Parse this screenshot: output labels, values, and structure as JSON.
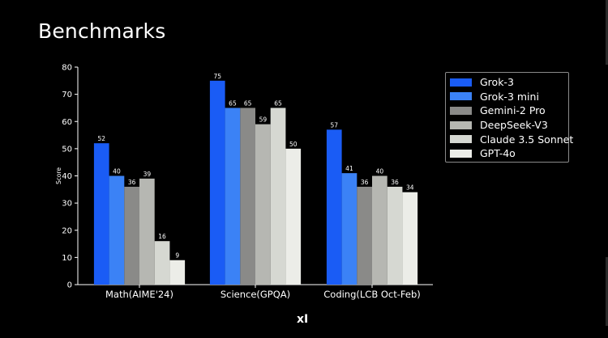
{
  "slide": {
    "title": "Benchmarks",
    "logo": "xI"
  },
  "colors": {
    "background": "#000000",
    "axis": "#ffffff"
  },
  "chart_data": {
    "type": "bar",
    "title": "",
    "xlabel": "",
    "ylabel": "Score",
    "ylim": [
      0,
      80
    ],
    "yticks": [
      0,
      10,
      20,
      30,
      40,
      50,
      60,
      70,
      80
    ],
    "grid": false,
    "legend_position": "top-right",
    "categories": [
      "Math(AIME'24)",
      "Science(GPQA)",
      "Coding(LCB Oct-Feb)"
    ],
    "series": [
      {
        "name": "Grok-3",
        "color": "#1a5cf5",
        "values": [
          52,
          75,
          57
        ]
      },
      {
        "name": "Grok-3 mini",
        "color": "#3b82f6",
        "values": [
          40,
          65,
          41
        ]
      },
      {
        "name": "Gemini-2 Pro",
        "color": "#8a8a88",
        "values": [
          36,
          65,
          36
        ]
      },
      {
        "name": "DeepSeek-V3",
        "color": "#b6b7b2",
        "values": [
          39,
          59,
          40
        ]
      },
      {
        "name": "Claude 3.5 Sonnet",
        "color": "#d6d8d2",
        "values": [
          16,
          65,
          36
        ]
      },
      {
        "name": "GPT-4o",
        "color": "#ecede8",
        "values": [
          9,
          50,
          34
        ]
      }
    ]
  }
}
